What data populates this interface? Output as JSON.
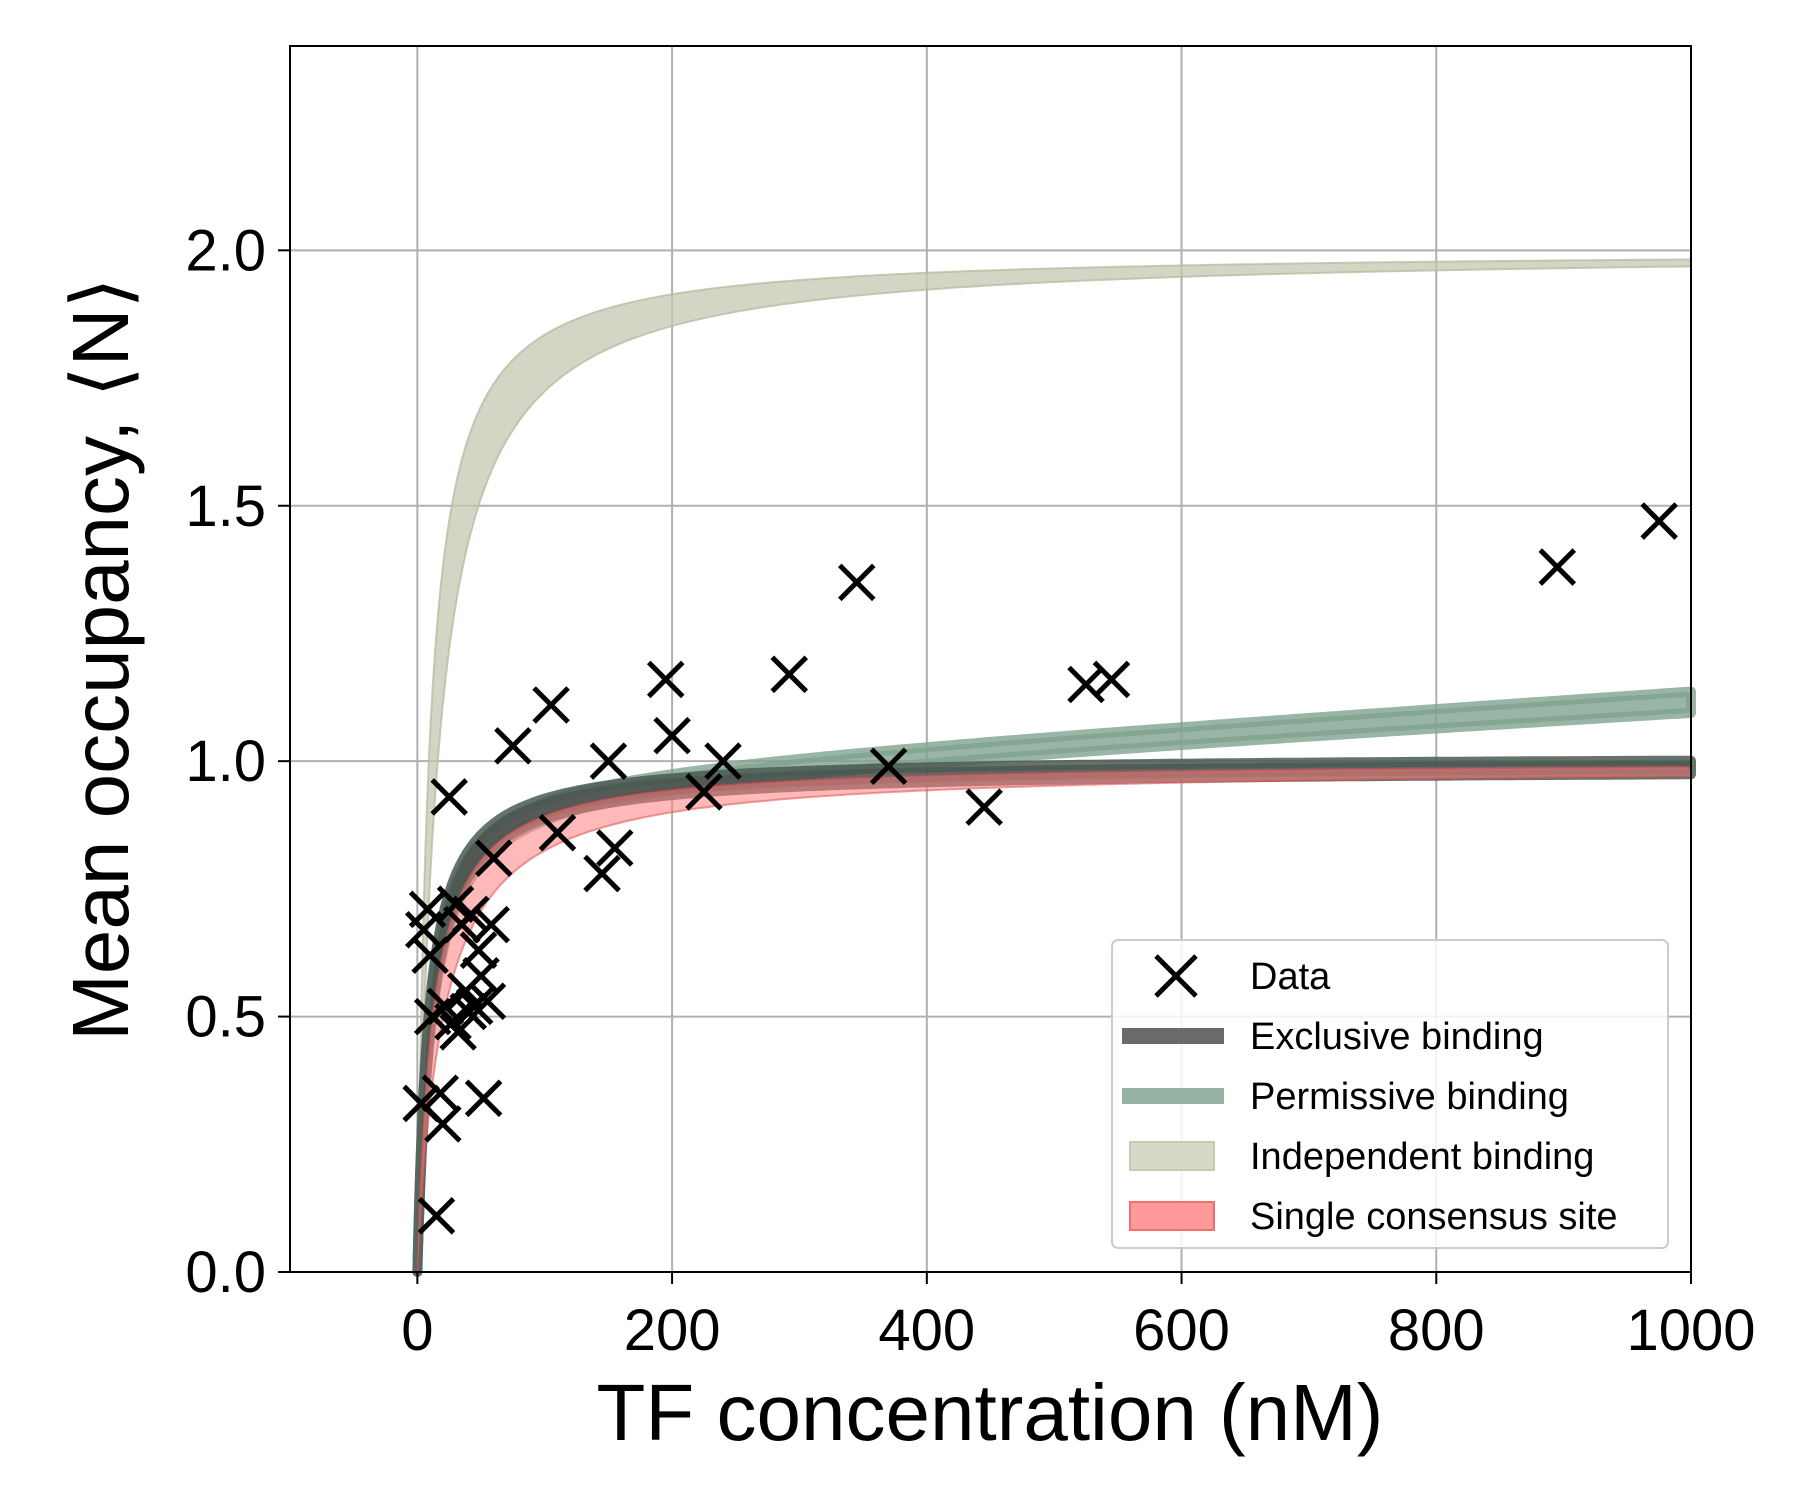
{
  "chart_data": {
    "type": "scatter",
    "title": "",
    "xlabel": "TF concentration (nM)",
    "ylabel": "Mean occupancy, ⟨N⟩",
    "xlim": [
      -100,
      1000
    ],
    "ylim": [
      0,
      2.4
    ],
    "xticks": [
      0,
      200,
      400,
      600,
      800,
      1000
    ],
    "yticks": [
      0.0,
      0.5,
      1.0,
      1.5,
      2.0
    ],
    "xtick_labels": [
      "0",
      "200",
      "400",
      "600",
      "800",
      "1000"
    ],
    "ytick_labels": [
      "0.0",
      "0.5",
      "1.0",
      "1.5",
      "2.0"
    ],
    "grid": true,
    "legend_position": "bottom-right",
    "series": [
      {
        "name": "Data",
        "kind": "scatter",
        "marker": "x",
        "color": "#000000",
        "x": [
          15,
          3,
          5,
          8,
          10,
          12,
          18,
          20,
          22,
          25,
          28,
          30,
          32,
          35,
          38,
          40,
          42,
          45,
          48,
          50,
          52,
          55,
          58,
          60,
          75,
          105,
          110,
          145,
          150,
          155,
          195,
          200,
          225,
          240,
          292,
          345,
          370,
          445,
          525,
          545,
          895,
          975
        ],
        "y": [
          0.11,
          0.33,
          0.67,
          0.71,
          0.62,
          0.5,
          0.35,
          0.29,
          0.52,
          0.93,
          0.49,
          0.72,
          0.47,
          0.68,
          0.55,
          0.51,
          0.7,
          0.52,
          0.63,
          0.58,
          0.34,
          0.53,
          0.68,
          0.81,
          1.03,
          1.11,
          0.86,
          0.78,
          1.0,
          0.83,
          1.16,
          1.05,
          0.94,
          1.0,
          1.17,
          1.35,
          0.99,
          0.91,
          1.15,
          1.16,
          1.38,
          1.47
        ]
      },
      {
        "name": "Exclusive binding",
        "kind": "band",
        "color": "#4a4a4a",
        "model": "hill",
        "amplitude": [
          0.985,
          1.01
        ],
        "kd": [
          9,
          11
        ],
        "slope": [
          0,
          0
        ]
      },
      {
        "name": "Permissive binding",
        "kind": "band",
        "color": "#7fa38f",
        "model": "hill",
        "amplitude": [
          0.965,
          0.985
        ],
        "kd": [
          9,
          11
        ],
        "slope": [
          0.00014,
          0.00016
        ]
      },
      {
        "name": "Independent binding",
        "kind": "band",
        "color": "#c7c7b3",
        "model": "hill",
        "amplitude": [
          2.0,
          2.0
        ],
        "kd": [
          9,
          16
        ],
        "slope": [
          0,
          0
        ]
      },
      {
        "name": "Single consensus site",
        "kind": "band",
        "color": "#ff8080",
        "model": "hill",
        "amplitude": [
          0.99,
          1.0
        ],
        "kd": [
          12,
          20
        ],
        "slope": [
          0,
          0
        ]
      }
    ],
    "legend": [
      {
        "label": "Data",
        "style": "marker",
        "color": "#000000"
      },
      {
        "label": "Exclusive binding",
        "style": "line",
        "color": "#6a6a6a"
      },
      {
        "label": "Permissive binding",
        "style": "line",
        "color": "#96b3a3"
      },
      {
        "label": "Independent binding",
        "style": "patch",
        "color": "#d8d8c8",
        "stroke": "#c8c8b4"
      },
      {
        "label": "Single consensus site",
        "style": "patch",
        "color": "#ff9a9a",
        "stroke": "#f07070"
      }
    ]
  }
}
